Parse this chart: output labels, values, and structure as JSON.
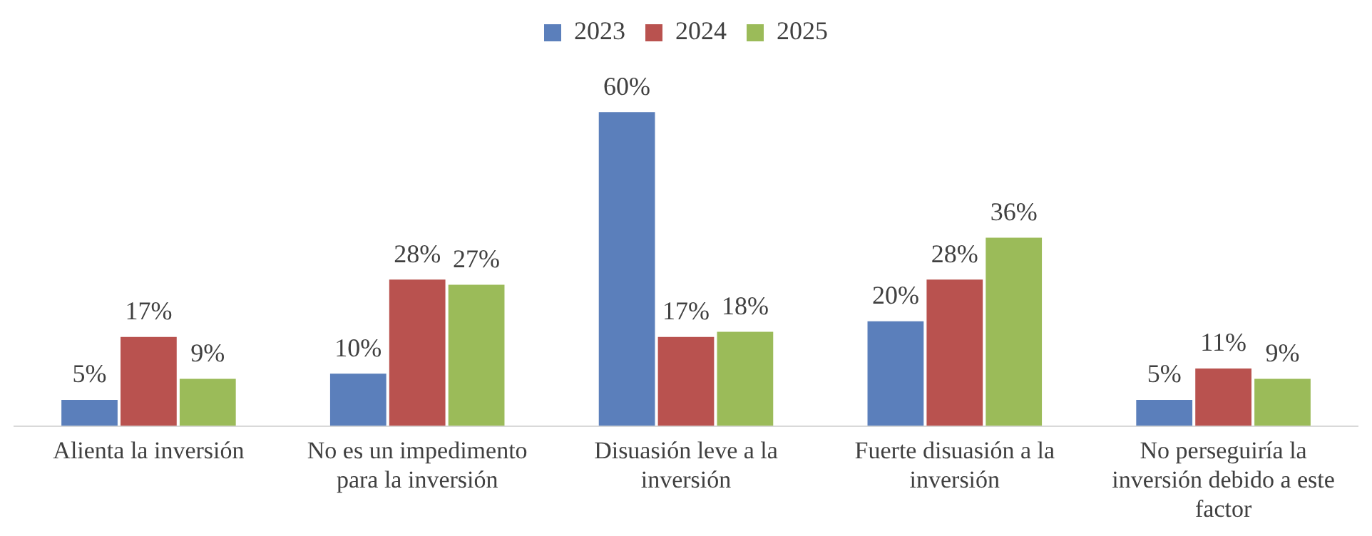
{
  "chart_data": {
    "type": "bar",
    "categories": [
      "Alienta la inversión",
      "No es un impedimento para la inversión",
      "Disuasión leve a la inversión",
      "Fuerte disuasión a la inversión",
      "No perseguiría la inversión debido a este factor"
    ],
    "series": [
      {
        "name": "2023",
        "color": "#5b7fbb",
        "values": [
          5,
          10,
          60,
          20,
          5
        ],
        "value_labels": [
          "5%",
          "10%",
          "60%",
          "20%",
          "5%"
        ]
      },
      {
        "name": "2024",
        "color": "#b9524f",
        "values": [
          17,
          28,
          17,
          28,
          11
        ],
        "value_labels": [
          "17%",
          "28%",
          "17%",
          "28%",
          "11%"
        ]
      },
      {
        "name": "2025",
        "color": "#9bbb59",
        "values": [
          9,
          27,
          18,
          36,
          9
        ],
        "value_labels": [
          "9%",
          "27%",
          "18%",
          "36%",
          "9%"
        ]
      }
    ],
    "legend": "top",
    "grid": false
  }
}
